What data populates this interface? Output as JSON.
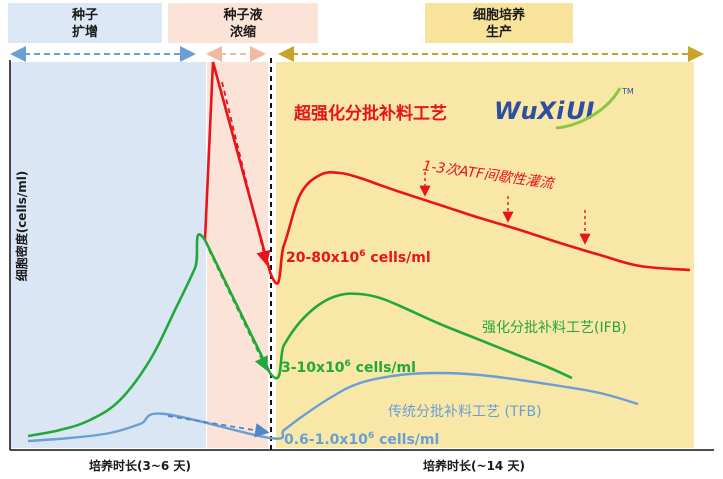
{
  "phases": {
    "seed": {
      "line1": "种子",
      "line2": "扩增",
      "color": "#dce8f5",
      "band_color": "#dbe6f4"
    },
    "conc": {
      "line1": "种子液",
      "line2": "浓缩",
      "color": "#fbe3d8",
      "band_color": "#fbe3d8"
    },
    "prod": {
      "line1": "细胞培养",
      "line2": "生产",
      "color": "#f8e39a",
      "band_color": "#f9e7a8"
    }
  },
  "axes": {
    "ylabel": "细胞密度(cells/ml)",
    "xlabel_left": "培养时长(3~6 天)",
    "xlabel_right": "培养时长(~14 天)"
  },
  "title": "超强化分批补料工艺",
  "logo": {
    "text": "WuXi",
    "suffix": "UI",
    "tm": "TM"
  },
  "annotations": {
    "atf": "1-3次ATF间歇性灌流"
  },
  "labels": {
    "red": {
      "text": "20-80x10",
      "sup": "6",
      "unit": " cells/ml"
    },
    "green": {
      "text": "3-10x10",
      "sup": "6",
      "unit": " cells/ml"
    },
    "blue": {
      "text": "0.6-1.0x10",
      "sup": "6",
      "unit": " cells/ml"
    },
    "ifb": "强化分批补料工艺(IFB)",
    "tfb": "传统分批补料工艺 (TFB)"
  },
  "colors": {
    "red": "#e8131b",
    "green": "#22a83a",
    "blue": "#6a9fd4",
    "arrow_seed": "#6a9fd4",
    "arrow_conc": "#f0b9a0",
    "arrow_prod": "#c9a227",
    "logo_blue": "#2e4fa0",
    "logo_green": "#8dc63f"
  },
  "chart_data": {
    "type": "line",
    "xlabel": "",
    "ylabel": "细胞密度(cells/ml)",
    "series": [
      {
        "name": "超强化分批补料工艺",
        "color": "#e8131b",
        "points": [
          [
            205,
            240
          ],
          [
            213,
            62
          ],
          [
            270,
            272
          ],
          [
            284,
            245
          ],
          [
            300,
            195
          ],
          [
            320,
            175
          ],
          [
            340,
            173
          ],
          [
            360,
            178
          ],
          [
            380,
            185
          ],
          [
            400,
            192
          ],
          [
            440,
            205
          ],
          [
            480,
            218
          ],
          [
            520,
            230
          ],
          [
            560,
            243
          ],
          [
            600,
            255
          ],
          [
            640,
            266
          ],
          [
            690,
            270
          ]
        ]
      },
      {
        "name": "强化分批补料工艺(IFB)",
        "color": "#22a83a",
        "points": [
          [
            28,
            436
          ],
          [
            60,
            430
          ],
          [
            90,
            420
          ],
          [
            120,
            400
          ],
          [
            150,
            360
          ],
          [
            175,
            310
          ],
          [
            195,
            268
          ],
          [
            205,
            240
          ],
          [
            270,
            373
          ],
          [
            284,
            345
          ],
          [
            300,
            322
          ],
          [
            320,
            304
          ],
          [
            340,
            295
          ],
          [
            360,
            294
          ],
          [
            380,
            298
          ],
          [
            400,
            306
          ],
          [
            440,
            324
          ],
          [
            480,
            340
          ],
          [
            520,
            356
          ],
          [
            550,
            368
          ],
          [
            572,
            378
          ]
        ]
      },
      {
        "name": "传统分批补料工艺 (TFB)",
        "color": "#6a9fd4",
        "points": [
          [
            28,
            441
          ],
          [
            70,
            438
          ],
          [
            110,
            433
          ],
          [
            140,
            424
          ],
          [
            165,
            414
          ],
          [
            270,
            438
          ],
          [
            284,
            430
          ],
          [
            300,
            418
          ],
          [
            330,
            398
          ],
          [
            360,
            383
          ],
          [
            400,
            375
          ],
          [
            440,
            373
          ],
          [
            480,
            375
          ],
          [
            520,
            380
          ],
          [
            560,
            386
          ],
          [
            600,
            393
          ],
          [
            638,
            404
          ]
        ]
      }
    ]
  }
}
